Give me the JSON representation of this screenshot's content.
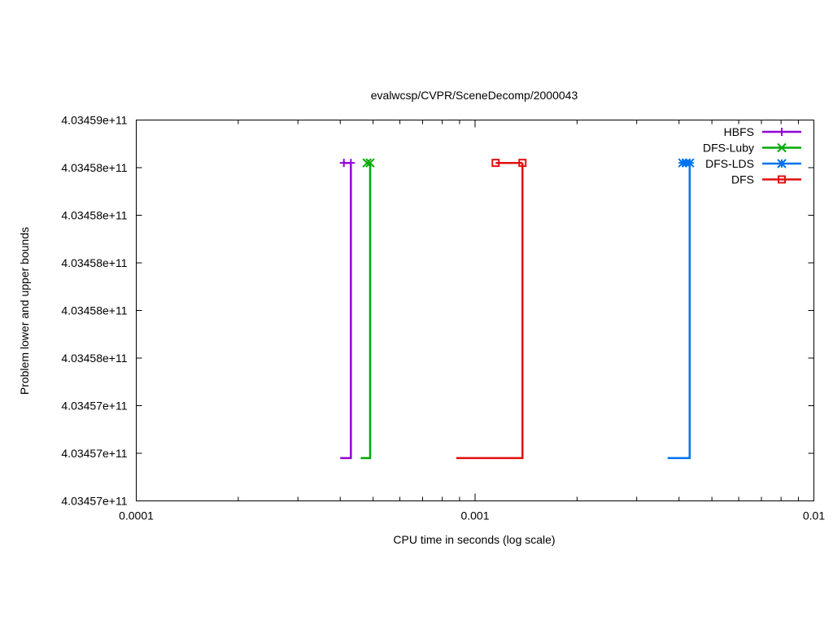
{
  "chart_data": {
    "type": "line",
    "title": "evalwcsp/CVPR/SceneDecomp/2000043",
    "xlabel": "CPU time in seconds (log scale)",
    "ylabel": "Problem lower and upper bounds",
    "x_scale": "log",
    "xlim": [
      0.0001,
      0.01
    ],
    "x_ticks": [
      {
        "value": 0.0001,
        "label": "0.0001"
      },
      {
        "value": 0.001,
        "label": "0.001"
      },
      {
        "value": 0.01,
        "label": "0.01"
      }
    ],
    "ylim": [
      0,
      8
    ],
    "y_unit_note": "",
    "y_ticks": [
      {
        "value": 0,
        "label": "4.03457e+11"
      },
      {
        "value": 1,
        "label": "4.03457e+11"
      },
      {
        "value": 2,
        "label": "4.03457e+11"
      },
      {
        "value": 3,
        "label": "4.03458e+11"
      },
      {
        "value": 4,
        "label": "4.03458e+11"
      },
      {
        "value": 5,
        "label": "4.03458e+11"
      },
      {
        "value": 6,
        "label": "4.03458e+11"
      },
      {
        "value": 7,
        "label": "4.03458e+11"
      },
      {
        "value": 8,
        "label": "4.03459e+11"
      }
    ],
    "legend_position": "top-right",
    "grid": false,
    "series": [
      {
        "name": "HBFS",
        "color": "#9400d3",
        "marker": "plus",
        "lower_bound": {
          "x": [
            0.0004,
            0.00043,
            0.00043
          ],
          "y": [
            0.9,
            0.9,
            7.1
          ]
        },
        "upper_bound": {
          "x": [
            0.00041,
            0.00043
          ],
          "y": [
            7.1,
            7.1
          ]
        },
        "points": [
          [
            0.00041,
            7.1
          ],
          [
            0.00043,
            7.1
          ]
        ]
      },
      {
        "name": "DFS-Luby",
        "color": "#00aa00",
        "marker": "x",
        "lower_bound": {
          "x": [
            0.00046,
            0.00049,
            0.00049
          ],
          "y": [
            0.9,
            0.9,
            7.1
          ]
        },
        "upper_bound": {
          "x": [
            0.00048,
            0.00049
          ],
          "y": [
            7.1,
            7.1
          ]
        },
        "points": [
          [
            0.00048,
            7.1
          ],
          [
            0.00049,
            7.1
          ]
        ]
      },
      {
        "name": "DFS-LDS",
        "color": "#0072f0",
        "marker": "star",
        "lower_bound": {
          "x": [
            0.0037,
            0.0043,
            0.0043
          ],
          "y": [
            0.9,
            0.9,
            7.1
          ]
        },
        "upper_bound": {
          "x": [
            0.0041,
            0.0043
          ],
          "y": [
            7.1,
            7.1
          ]
        },
        "points": [
          [
            0.0041,
            7.1
          ],
          [
            0.0042,
            7.1
          ],
          [
            0.0043,
            7.1
          ]
        ]
      },
      {
        "name": "DFS",
        "color": "#e01010",
        "marker": "square",
        "lower_bound": {
          "x": [
            0.00088,
            0.00138,
            0.00138
          ],
          "y": [
            0.9,
            0.9,
            7.1
          ]
        },
        "upper_bound": {
          "x": [
            0.00115,
            0.00138
          ],
          "y": [
            7.1,
            7.1
          ]
        },
        "points": [
          [
            0.00115,
            7.1
          ],
          [
            0.00138,
            7.1
          ]
        ]
      }
    ]
  }
}
